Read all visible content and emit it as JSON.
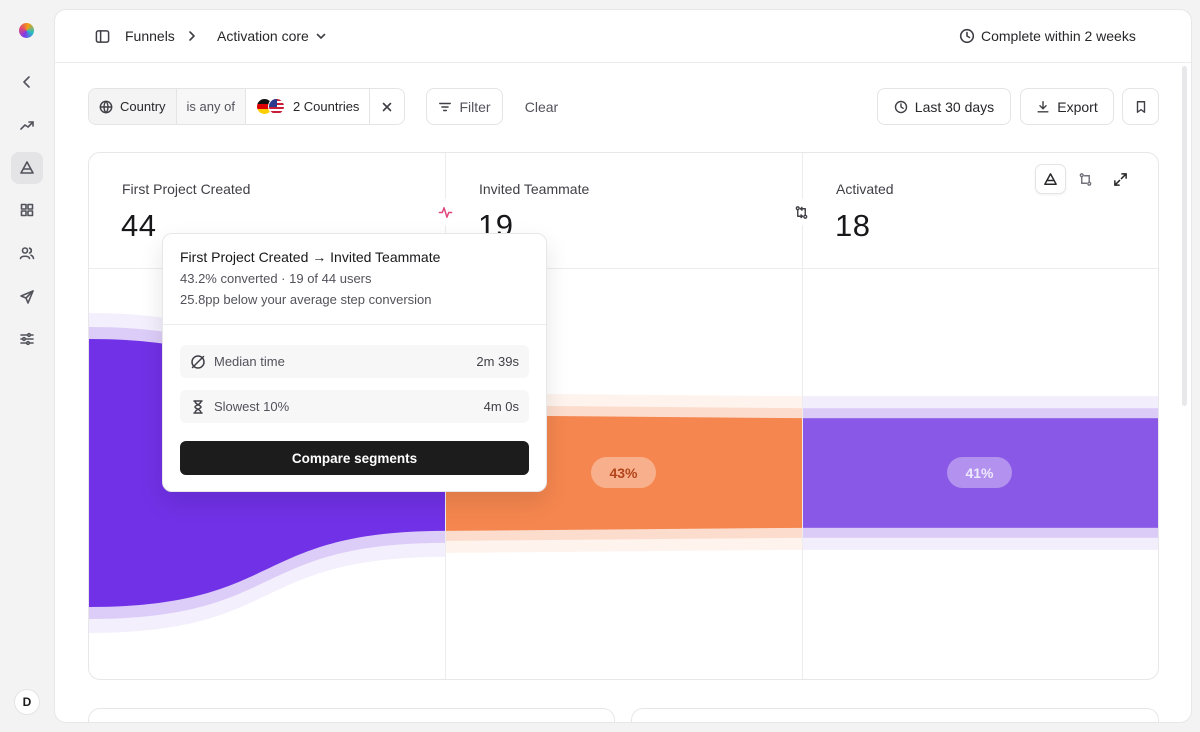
{
  "app": {
    "nav": [
      {
        "name": "collapse-sidebar",
        "icon": "chevron-left-icon"
      },
      {
        "name": "trends",
        "icon": "trending-up-icon"
      },
      {
        "name": "funnels",
        "icon": "funnel-icon"
      },
      {
        "name": "dashboards",
        "icon": "grid-icon"
      },
      {
        "name": "users",
        "icon": "users-icon"
      },
      {
        "name": "messages",
        "icon": "send-icon"
      },
      {
        "name": "settings",
        "icon": "sliders-icon"
      }
    ],
    "avatar_initial": "D"
  },
  "header": {
    "breadcrumb_root": "Funnels",
    "breadcrumb_current": "Activation core",
    "conversion_window": "Complete within 2 weeks"
  },
  "filters": {
    "property": "Country",
    "operator": "is any of",
    "value": "2 Countries",
    "filter_label": "Filter",
    "clear_label": "Clear"
  },
  "toolbar": {
    "date_range": "Last 30 days",
    "export_label": "Export"
  },
  "chart_data": {
    "type": "funnel",
    "steps": [
      {
        "name": "First Project Created",
        "count": 44
      },
      {
        "name": "Invited Teammate",
        "count": 19
      },
      {
        "name": "Activated",
        "count": 18
      }
    ],
    "conversions": [
      "43%",
      "41%"
    ],
    "colors": {
      "step1": "#7131e6",
      "step2": "#f5864f",
      "step3": "#8a58e6"
    }
  },
  "tooltip": {
    "title": "First Project Created → Invited Teammate",
    "line1": "43.2% converted · 19 of 44 users",
    "line2": "25.8pp below your average step conversion",
    "median_label": "Median time",
    "median_value": "2m 39s",
    "slowest_label": "Slowest 10%",
    "slowest_value": "4m 0s",
    "button_label": "Compare segments"
  }
}
